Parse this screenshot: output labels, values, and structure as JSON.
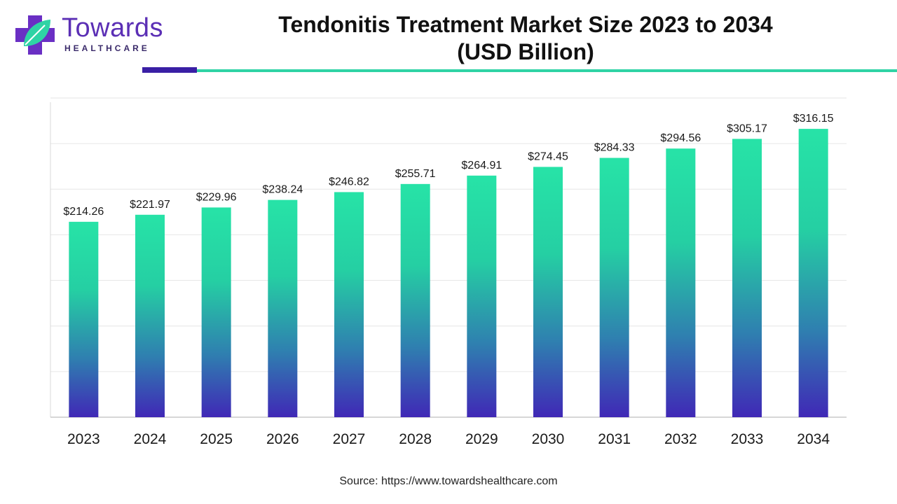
{
  "brand": {
    "name": "Towards",
    "tagline": "HEALTHCARE",
    "colors": {
      "primary": "#5b2fb5",
      "accent": "#2fd3a5"
    },
    "logo_icon": "medical-cross-leaf-icon"
  },
  "title_line1": "Tendonitis Treatment Market Size 2023 to 2034",
  "title_line2": "(USD Billion)",
  "source_text": "Source: https://www.towardshealthcare.com",
  "chart_data": {
    "type": "bar",
    "title": "Tendonitis Treatment Market Size 2023 to 2034 (USD Billion)",
    "xlabel": "",
    "ylabel": "",
    "categories": [
      "2023",
      "2024",
      "2025",
      "2026",
      "2027",
      "2028",
      "2029",
      "2030",
      "2031",
      "2032",
      "2033",
      "2034"
    ],
    "values": [
      214.26,
      221.97,
      229.96,
      238.24,
      246.82,
      255.71,
      264.91,
      274.45,
      284.33,
      294.56,
      305.17,
      316.15
    ],
    "value_labels": [
      "$214.26",
      "$221.97",
      "$229.96",
      "$238.24",
      "$246.82",
      "$255.71",
      "$264.91",
      "$274.45",
      "$284.33",
      "$294.56",
      "$305.17",
      "$316.15"
    ],
    "ylim": [
      0,
      350
    ],
    "grid": true,
    "legend": "none",
    "bar_gradient": {
      "top": "#27e3a7",
      "bottom": "#4028b6"
    }
  }
}
